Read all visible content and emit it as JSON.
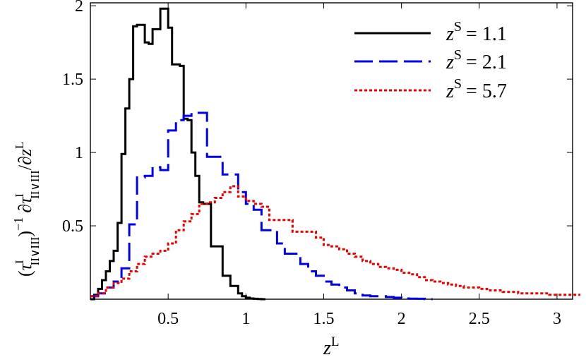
{
  "chart_data": {
    "type": "line",
    "style": "step",
    "xlabel": {
      "base": "z",
      "sup": "L"
    },
    "ylabel": {
      "open": "(",
      "tau": "τ",
      "tau_sup": "I",
      "tau_sub": "II∨III",
      "close": ")",
      "exp": "−1",
      "partial": "∂",
      "tau2": "τ",
      "tau2_sup": "I",
      "tau2_sub": "II∨III",
      "slash": "/∂",
      "z": "z",
      "z_sup": "L"
    },
    "xlim": [
      0,
      3.1
    ],
    "ylim": [
      0,
      2.02
    ],
    "xticks": [
      0.5,
      1,
      1.5,
      2,
      2.5,
      3
    ],
    "xtick_labels": [
      "0.5",
      "1",
      "1.5",
      "2",
      "2.5",
      "3"
    ],
    "yticks": [
      0.5,
      1,
      1.5,
      2
    ],
    "ytick_labels": [
      "0.5",
      "1",
      "1.5",
      "2"
    ],
    "legend_position": "top-right",
    "series": [
      {
        "name_base": "z",
        "name_sup": "S",
        "name_value": "= 1.1",
        "color": "#000000",
        "dash": "solid",
        "x": [
          0.0,
          0.025,
          0.05,
          0.075,
          0.1,
          0.125,
          0.15,
          0.175,
          0.2,
          0.225,
          0.25,
          0.275,
          0.3,
          0.325,
          0.35,
          0.375,
          0.4,
          0.425,
          0.45,
          0.475,
          0.5,
          0.525,
          0.55,
          0.575,
          0.6,
          0.625,
          0.65,
          0.675,
          0.7,
          0.725,
          0.75,
          0.775,
          0.8,
          0.825,
          0.85,
          0.875,
          0.9,
          0.925,
          0.95,
          0.975,
          1.0,
          1.025,
          1.05,
          1.075,
          1.1
        ],
        "y": [
          0.0,
          0.03,
          0.07,
          0.13,
          0.19,
          0.26,
          0.33,
          0.52,
          0.99,
          1.3,
          1.5,
          1.86,
          1.87,
          1.87,
          1.75,
          1.74,
          1.84,
          1.84,
          1.98,
          1.98,
          1.85,
          1.6,
          1.6,
          1.59,
          1.23,
          1.22,
          1.0,
          0.84,
          0.66,
          0.65,
          0.65,
          0.36,
          0.36,
          0.36,
          0.16,
          0.16,
          0.09,
          0.09,
          0.04,
          0.02,
          0.01,
          0.005,
          0.003,
          0.001,
          0.0
        ]
      },
      {
        "name_base": "z",
        "name_sup": "S",
        "name_value": "= 2.1",
        "color": "#0000ee",
        "dash": "long-dash",
        "x": [
          0.0,
          0.05,
          0.1,
          0.15,
          0.2,
          0.25,
          0.3,
          0.35,
          0.4,
          0.45,
          0.5,
          0.55,
          0.6,
          0.65,
          0.7,
          0.75,
          0.8,
          0.85,
          0.9,
          0.95,
          1.0,
          1.05,
          1.1,
          1.15,
          1.2,
          1.25,
          1.3,
          1.35,
          1.4,
          1.45,
          1.5,
          1.55,
          1.6,
          1.65,
          1.7,
          1.75,
          1.8,
          1.85,
          1.9,
          1.95,
          2.0,
          2.05,
          2.1,
          2.15
        ],
        "y": [
          0.02,
          0.04,
          0.08,
          0.12,
          0.21,
          0.51,
          0.83,
          0.84,
          0.9,
          0.88,
          1.15,
          1.22,
          1.25,
          1.27,
          1.27,
          0.97,
          0.97,
          0.85,
          0.85,
          0.73,
          0.65,
          0.61,
          0.47,
          0.47,
          0.38,
          0.31,
          0.31,
          0.24,
          0.19,
          0.16,
          0.12,
          0.1,
          0.08,
          0.06,
          0.04,
          0.025,
          0.02,
          0.02,
          0.015,
          0.01,
          0.005,
          0.004,
          0.003,
          0.0
        ]
      },
      {
        "name_base": "z",
        "name_sup": "S",
        "name_value": "= 5.7",
        "color": "#ee0000",
        "dash": "dotted",
        "x": [
          0.0,
          0.05,
          0.1,
          0.15,
          0.2,
          0.25,
          0.3,
          0.35,
          0.4,
          0.45,
          0.5,
          0.55,
          0.6,
          0.65,
          0.7,
          0.75,
          0.8,
          0.85,
          0.9,
          0.95,
          1.0,
          1.05,
          1.1,
          1.15,
          1.2,
          1.25,
          1.3,
          1.35,
          1.4,
          1.45,
          1.5,
          1.55,
          1.6,
          1.65,
          1.7,
          1.75,
          1.8,
          1.85,
          1.9,
          1.95,
          2.0,
          2.05,
          2.1,
          2.15,
          2.2,
          2.25,
          2.3,
          2.35,
          2.4,
          2.45,
          2.5,
          2.55,
          2.6,
          2.65,
          2.7,
          2.75,
          2.8,
          2.85,
          2.9,
          2.95,
          3.0,
          3.05,
          3.1
        ],
        "y": [
          0.02,
          0.04,
          0.08,
          0.11,
          0.14,
          0.19,
          0.24,
          0.29,
          0.31,
          0.33,
          0.38,
          0.47,
          0.53,
          0.58,
          0.65,
          0.66,
          0.69,
          0.73,
          0.77,
          0.7,
          0.67,
          0.65,
          0.63,
          0.54,
          0.54,
          0.54,
          0.46,
          0.46,
          0.46,
          0.42,
          0.37,
          0.36,
          0.34,
          0.31,
          0.29,
          0.26,
          0.24,
          0.22,
          0.21,
          0.2,
          0.18,
          0.17,
          0.15,
          0.13,
          0.12,
          0.11,
          0.1,
          0.09,
          0.08,
          0.08,
          0.07,
          0.06,
          0.06,
          0.05,
          0.05,
          0.04,
          0.04,
          0.04,
          0.04,
          0.03,
          0.03,
          0.03,
          0.03
        ]
      }
    ]
  }
}
